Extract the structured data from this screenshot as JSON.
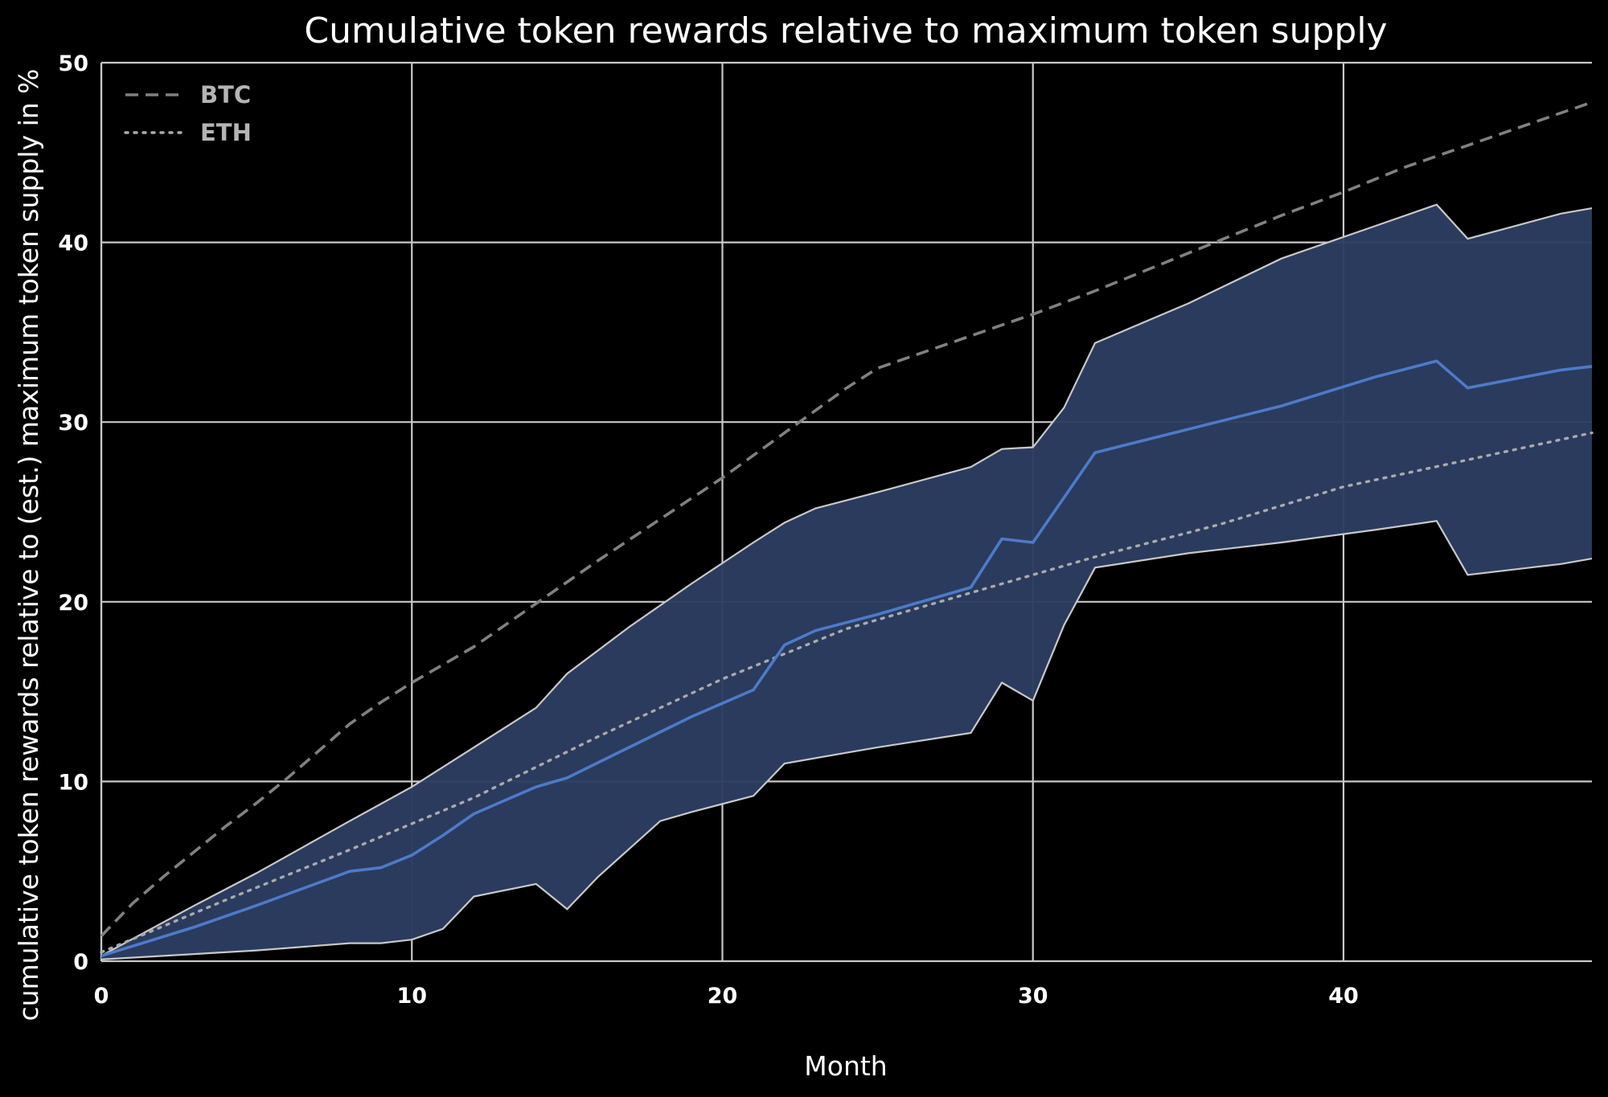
{
  "chart_data": {
    "type": "line",
    "title": "Cumulative token rewards relative to maximum token supply",
    "xlabel": "Month",
    "ylabel": "cumulative token rewards relative to (est.) maximum token supply in %",
    "xlim": [
      0,
      48
    ],
    "ylim": [
      0,
      50
    ],
    "x_ticks": [
      0,
      10,
      20,
      30,
      40
    ],
    "y_ticks": [
      0,
      10,
      20,
      30,
      40,
      50
    ],
    "grid": true,
    "legend_position": "top-left",
    "colors": {
      "background": "#000000",
      "grid": "#c8c8c8",
      "band_fill": "#2b3d61",
      "band_edge": "#c8c8c8",
      "mean_line": "#4e7ac7",
      "btc": "#808080",
      "eth": "#aaaaaa"
    },
    "series": [
      {
        "name": "BTC",
        "style": "dashed",
        "x": [
          0,
          1,
          2,
          3,
          4,
          5,
          6,
          7,
          8,
          9,
          10,
          12,
          14,
          16,
          18,
          20,
          22,
          24,
          25,
          27,
          30,
          32,
          34,
          36,
          38,
          40,
          42,
          44,
          46,
          48
        ],
        "values": [
          1.4,
          3.2,
          4.7,
          6.1,
          7.5,
          8.8,
          10.2,
          11.7,
          13.2,
          14.4,
          15.5,
          17.5,
          19.9,
          22.3,
          24.6,
          26.9,
          29.4,
          31.9,
          33.0,
          34.2,
          36.0,
          37.3,
          38.7,
          40.1,
          41.5,
          42.8,
          44.2,
          45.4,
          46.6,
          47.8
        ]
      },
      {
        "name": "ETH",
        "style": "dotted",
        "x": [
          0,
          4,
          8,
          12,
          16,
          20,
          24,
          28,
          32,
          36,
          40,
          44,
          48
        ],
        "values": [
          0.5,
          3.4,
          6.2,
          9.1,
          12.5,
          15.7,
          18.5,
          20.5,
          22.5,
          24.3,
          26.4,
          27.9,
          29.4
        ]
      },
      {
        "role": "mean",
        "style": "solid",
        "x": [
          0,
          3,
          5,
          8,
          9,
          10,
          11,
          12,
          14,
          15,
          17,
          19,
          21,
          22,
          23,
          25,
          28,
          29,
          30,
          31,
          32,
          35,
          38,
          41,
          43,
          44,
          47,
          48
        ],
        "values": [
          0.3,
          1.9,
          3.1,
          5.0,
          5.2,
          5.9,
          7.0,
          8.2,
          9.7,
          10.2,
          11.9,
          13.6,
          15.1,
          17.6,
          18.4,
          19.3,
          20.8,
          23.5,
          23.3,
          25.8,
          28.3,
          29.6,
          30.9,
          32.5,
          33.4,
          31.9,
          32.9,
          33.1
        ]
      },
      {
        "role": "band-upper",
        "x": [
          0,
          3,
          5,
          8,
          10,
          12,
          14,
          15,
          17,
          19,
          21,
          22,
          23,
          25,
          28,
          29,
          30,
          31,
          32,
          35,
          38,
          41,
          43,
          44,
          47,
          48
        ],
        "values": [
          0.3,
          3.1,
          4.9,
          7.8,
          9.7,
          11.9,
          14.1,
          16.0,
          18.6,
          21.0,
          23.3,
          24.4,
          25.2,
          26.1,
          27.5,
          28.5,
          28.6,
          30.8,
          34.4,
          36.6,
          39.1,
          40.9,
          42.1,
          40.2,
          41.6,
          41.9
        ]
      },
      {
        "role": "band-lower",
        "x": [
          0,
          3,
          5,
          8,
          9,
          10,
          11,
          12,
          14,
          15,
          16,
          18,
          19,
          21,
          22,
          25,
          28,
          29,
          30,
          31,
          32,
          35,
          38,
          41,
          43,
          44,
          47,
          48
        ],
        "values": [
          0.1,
          0.4,
          0.6,
          1.0,
          1.0,
          1.2,
          1.8,
          3.6,
          4.3,
          2.9,
          4.7,
          7.8,
          8.3,
          9.2,
          11.0,
          11.9,
          12.7,
          15.5,
          14.5,
          18.7,
          21.9,
          22.7,
          23.3,
          24.0,
          24.5,
          21.5,
          22.1,
          22.4
        ]
      }
    ]
  }
}
